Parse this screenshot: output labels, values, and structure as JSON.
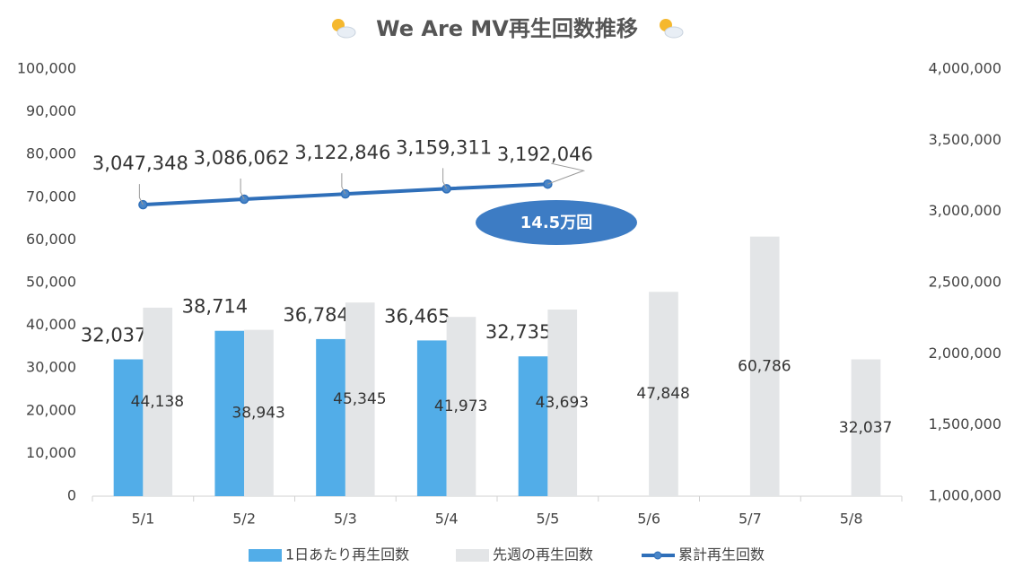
{
  "chart_data": {
    "type": "bar",
    "title": "We Are MV再生回数推移",
    "categories": [
      "5/1",
      "5/2",
      "5/3",
      "5/4",
      "5/5",
      "5/6",
      "5/7",
      "5/8"
    ],
    "series": [
      {
        "name": "1日あたり再生回数",
        "type": "bar",
        "color": "#52ade8",
        "values": [
          32037,
          38714,
          36784,
          36465,
          32735,
          null,
          null,
          null
        ],
        "value_labels": [
          "32,037",
          "38,714",
          "36,784",
          "36,465",
          "32,735",
          null,
          null,
          null
        ]
      },
      {
        "name": "先週の再生回数",
        "type": "bar",
        "color": "#e3e5e7",
        "values": [
          44138,
          38943,
          45345,
          41973,
          43693,
          47848,
          60786,
          32037
        ],
        "value_labels": [
          "44,138",
          "38,943",
          "45,345",
          "41,973",
          "43,693",
          "47,848",
          "60,786",
          "32,037"
        ]
      },
      {
        "name": "累計再生回数",
        "type": "line",
        "axis": "y2",
        "color": "#2f6fb9",
        "values": [
          3047348,
          3086062,
          3122846,
          3159311,
          3192046,
          null,
          null,
          null
        ],
        "value_labels": [
          "3,047,348",
          "3,086,062",
          "3,122,846",
          "3,159,311",
          "3,192,046",
          null,
          null,
          null
        ]
      }
    ],
    "annotation": "14.5万回",
    "ylim": [
      0,
      100000
    ],
    "yticks": [
      0,
      {
        "value": 10000,
        "label": "10,000"
      },
      {
        "value": 20000,
        "label": "20,000"
      },
      {
        "value": 30000,
        "label": "30,000"
      },
      {
        "value": 40000,
        "label": "40,000"
      },
      {
        "value": 50000,
        "label": "50,000"
      },
      {
        "value": 60000,
        "label": "60,000"
      },
      {
        "value": 70000,
        "label": "70,000"
      },
      {
        "value": 80000,
        "label": "80,000"
      },
      {
        "value": 90000,
        "label": "90,000"
      },
      {
        "value": 100000,
        "label": "100,000"
      }
    ],
    "y2lim": [
      1000000,
      4000000
    ],
    "y2ticks": [
      {
        "value": 1000000,
        "label": "1,000,000"
      },
      {
        "value": 1500000,
        "label": "1,500,000"
      },
      {
        "value": 2000000,
        "label": "2,000,000"
      },
      {
        "value": 2500000,
        "label": "2,500,000"
      },
      {
        "value": 3000000,
        "label": "3,000,000"
      },
      {
        "value": 3500000,
        "label": "3,500,000"
      },
      {
        "value": 4000000,
        "label": "4,000,000"
      }
    ],
    "grid": false,
    "legend": "bottom"
  }
}
